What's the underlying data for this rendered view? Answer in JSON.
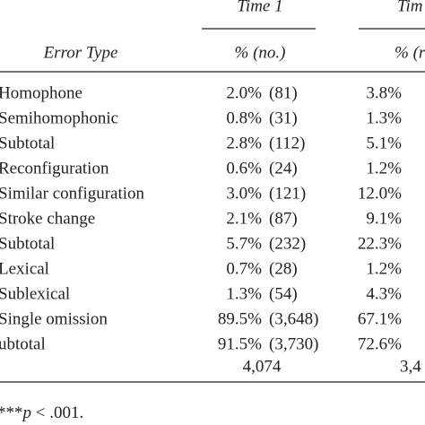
{
  "header": {
    "group1": "Time 1",
    "group2": "Tim",
    "row_head": "Error Type",
    "sub1": "% (no.)",
    "sub2": "% (r"
  },
  "table": {
    "rows": [
      [
        "Homophone",
        "2.0%",
        "(81)",
        "3.8%"
      ],
      [
        "Semihomophonic",
        "0.8%",
        "(31)",
        "1.3%"
      ],
      [
        "Subtotal",
        "2.8%",
        "(112)",
        "5.1%"
      ],
      [
        "Reconfiguration",
        "0.6%",
        "(24)",
        "1.2%"
      ],
      [
        "Similar configuration",
        "3.0%",
        "(121)",
        "12.0%"
      ],
      [
        "Stroke change",
        "2.1%",
        "(87)",
        "9.1%"
      ],
      [
        "Subtotal",
        "5.7%",
        "(232)",
        "22.3%"
      ],
      [
        "Lexical",
        "0.7%",
        "(28)",
        "1.2%"
      ],
      [
        "Sublexical",
        "1.3%",
        "(54)",
        "4.3%"
      ],
      [
        "Single omission",
        "89.5%",
        "(3,648)",
        "67.1%"
      ],
      [
        "ubtotal",
        "91.5%",
        "(3,730)",
        "72.6%"
      ]
    ],
    "totals": [
      "4,074",
      "3,4"
    ]
  },
  "footnote": {
    "stars": "***",
    "p": "p",
    "rest": " < .001."
  }
}
